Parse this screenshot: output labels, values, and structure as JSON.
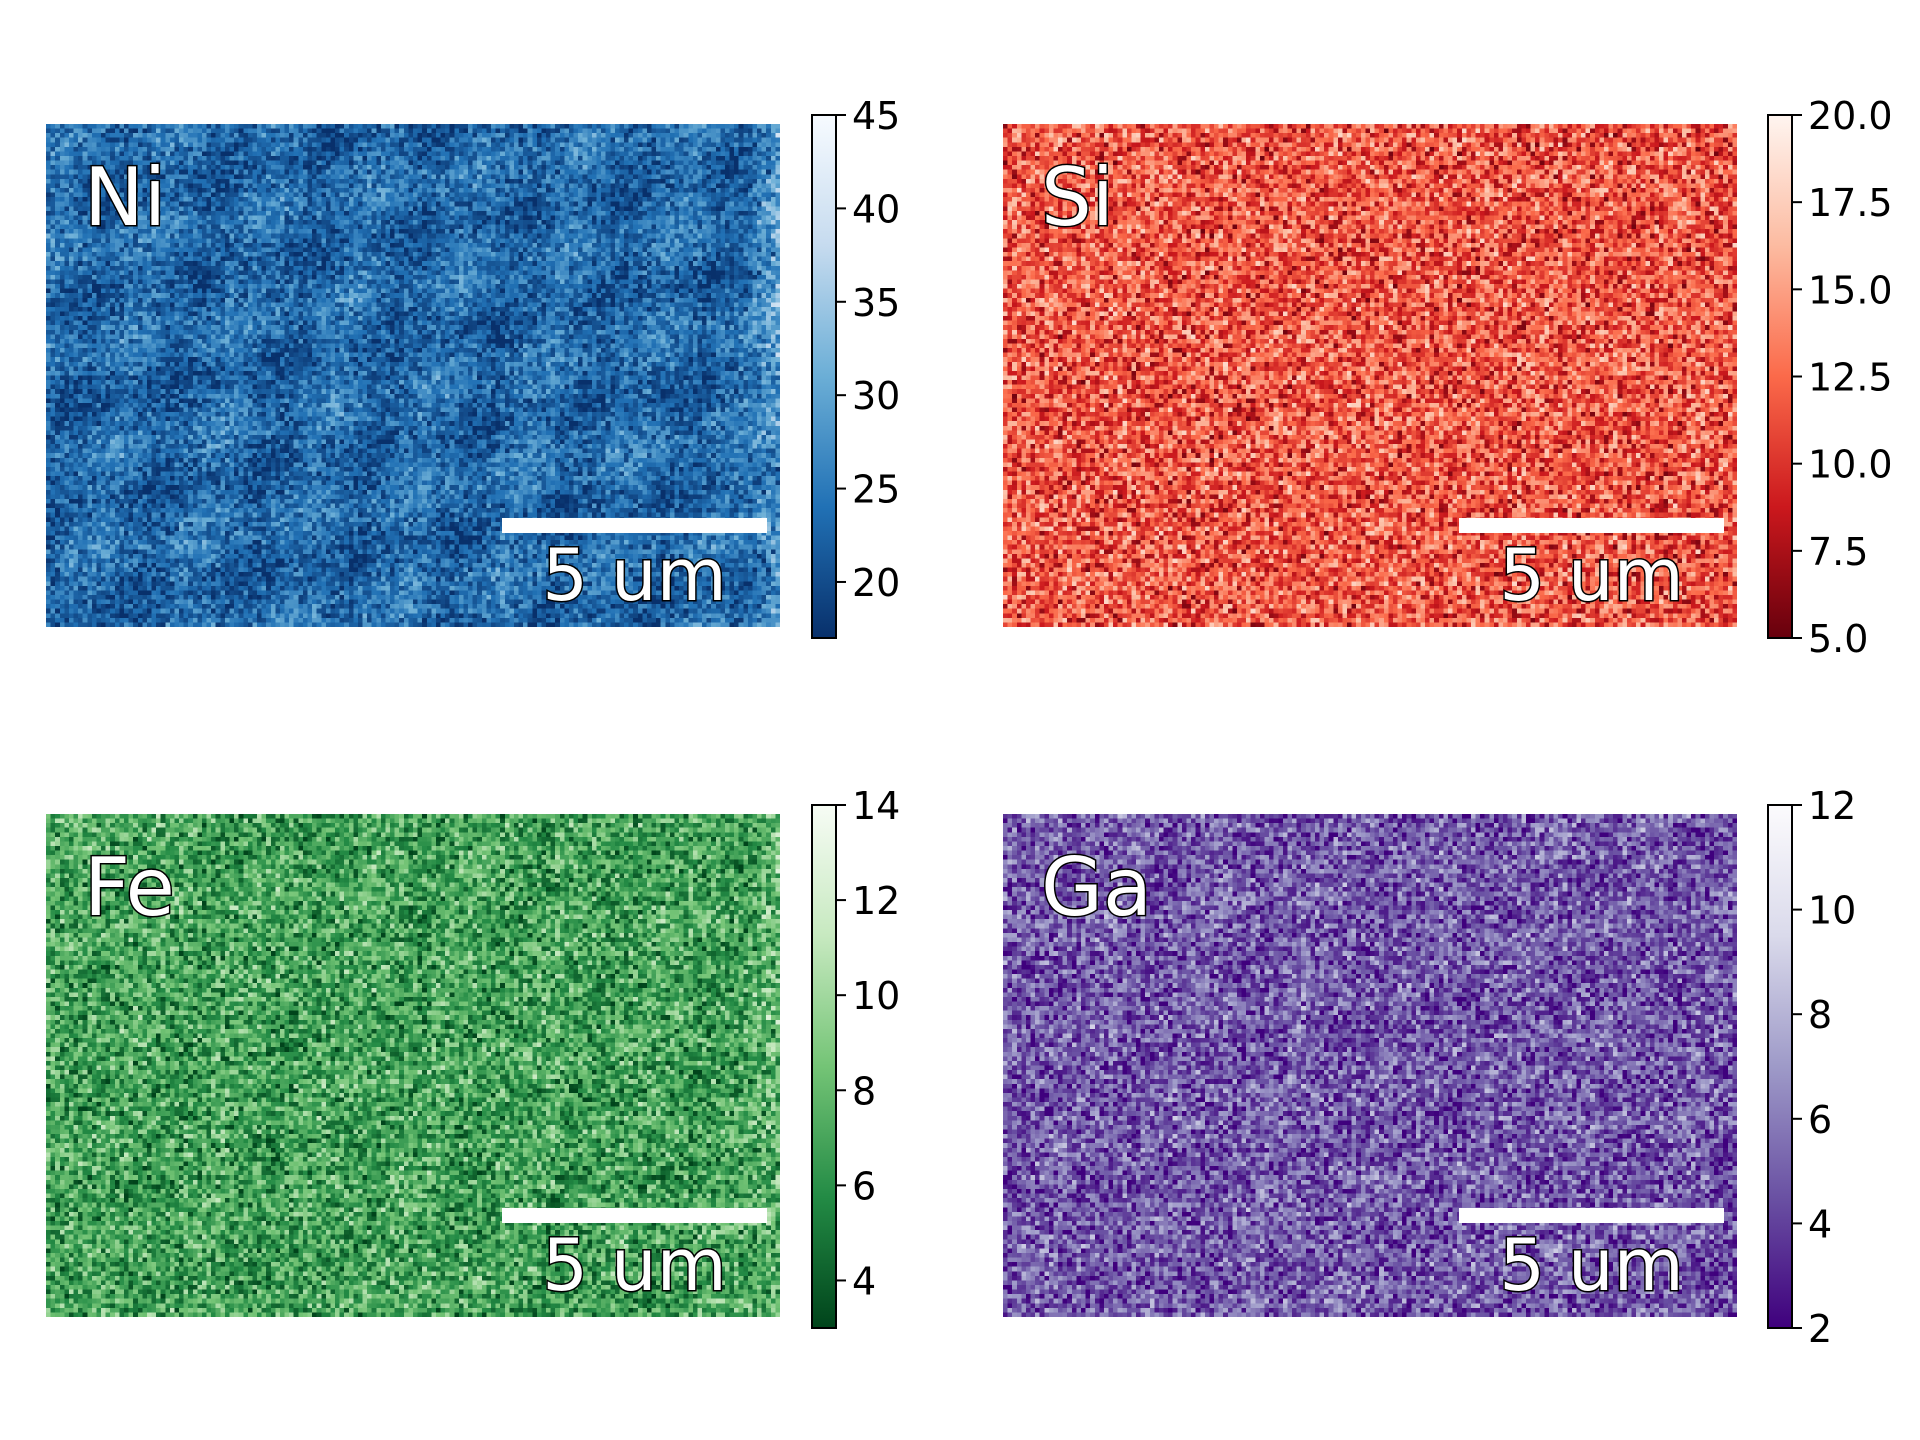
{
  "chart_data": [
    {
      "type": "heatmap",
      "element": "Ni",
      "colormap": "Blues_r",
      "clim": [
        17,
        45
      ],
      "colorbar_ticks": [
        "20",
        "25",
        "30",
        "35",
        "40",
        "45"
      ],
      "colorbar_tick_values": [
        20,
        25,
        30,
        35,
        40,
        45
      ],
      "scalebar_label": "5 um",
      "colors": [
        "#08306b",
        "#2171b5",
        "#6baed6",
        "#c6dbef",
        "#f7fbff"
      ]
    },
    {
      "type": "heatmap",
      "element": "Si",
      "colormap": "Reds_r",
      "clim": [
        5,
        20
      ],
      "colorbar_ticks": [
        "5.0",
        "7.5",
        "10.0",
        "12.5",
        "15.0",
        "17.5",
        "20.0"
      ],
      "colorbar_tick_values": [
        5,
        7.5,
        10,
        12.5,
        15,
        17.5,
        20
      ],
      "scalebar_label": "5 um",
      "colors": [
        "#67000d",
        "#cb181d",
        "#fb6a4a",
        "#fcbba1",
        "#fff5f0"
      ]
    },
    {
      "type": "heatmap",
      "element": "Fe",
      "colormap": "Greens_r",
      "clim": [
        3,
        14
      ],
      "colorbar_ticks": [
        "4",
        "6",
        "8",
        "10",
        "12",
        "14"
      ],
      "colorbar_tick_values": [
        4,
        6,
        8,
        10,
        12,
        14
      ],
      "scalebar_label": "5 um",
      "colors": [
        "#00441b",
        "#238b45",
        "#74c476",
        "#c7e9c0",
        "#f7fcf5"
      ]
    },
    {
      "type": "heatmap",
      "element": "Ga",
      "colormap": "Purples_r",
      "clim": [
        2,
        12
      ],
      "colorbar_ticks": [
        "2",
        "4",
        "6",
        "8",
        "10",
        "12"
      ],
      "colorbar_tick_values": [
        2,
        4,
        6,
        8,
        10,
        12
      ],
      "scalebar_label": "5 um",
      "colors": [
        "#3f007d",
        "#6a51a3",
        "#9e9ac8",
        "#dadaeb",
        "#fcfbfd"
      ]
    }
  ]
}
